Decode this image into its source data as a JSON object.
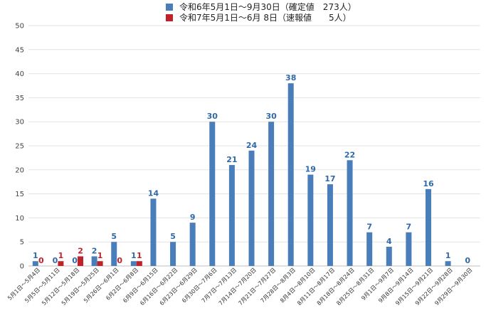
{
  "chart_data": {
    "type": "bar",
    "categories": [
      "5月1日～5月4日",
      "5月5日～5月11日",
      "5月12日～5月18日",
      "5月19日～5月25日",
      "5月26日～6月1日",
      "6月2日～6月8日",
      "6月9日～6月15日",
      "6月16日～6月22日",
      "6月23日～6月29日",
      "6月30日～7月6日",
      "7月7日～7月13日",
      "7月14日～7月20日",
      "7月21日～7月27日",
      "7月28日～8月3日",
      "8月4日～8月10日",
      "8月11日～8月17日",
      "8月18日～8月24日",
      "8月25日～8月31日",
      "9月1日～9月7日",
      "9月8日～9月14日",
      "9月15日～9月21日",
      "9月22日～9月28日",
      "9月29日～9月30日"
    ],
    "series": [
      {
        "name": "令和6年5月1日～9月30日（確定値　273人）",
        "color": "#4a7ebb",
        "values": [
          1,
          0,
          0,
          2,
          5,
          1,
          14,
          5,
          9,
          30,
          21,
          24,
          30,
          38,
          19,
          17,
          22,
          7,
          4,
          7,
          16,
          1,
          0
        ]
      },
      {
        "name": "令和7年5月1日～6月 8日（速報値　　5人）",
        "color": "#c0222a",
        "values": [
          0,
          1,
          2,
          1,
          0,
          1,
          null,
          null,
          null,
          null,
          null,
          null,
          null,
          null,
          null,
          null,
          null,
          null,
          null,
          null,
          null,
          null,
          null
        ]
      }
    ],
    "y_ticks": [
      "0",
      "5",
      "10",
      "15",
      "20",
      "25",
      "30",
      "35",
      "40",
      "45",
      "50"
    ],
    "ylim": [
      0,
      50
    ],
    "grid": true,
    "legend_position": "top"
  }
}
